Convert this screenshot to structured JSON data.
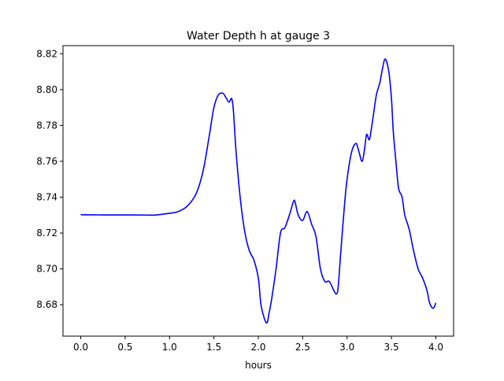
{
  "chart_data": {
    "type": "line",
    "title": "Water Depth h at gauge 3",
    "xlabel": "hours",
    "ylabel": "",
    "xlim": [
      -0.2,
      4.2
    ],
    "ylim": [
      8.6625,
      8.8245
    ],
    "xticks": [
      0.0,
      0.5,
      1.0,
      1.5,
      2.0,
      2.5,
      3.0,
      3.5,
      4.0
    ],
    "xtick_labels": [
      "0.0",
      "0.5",
      "1.0",
      "1.5",
      "2.0",
      "2.5",
      "3.0",
      "3.5",
      "4.0"
    ],
    "yticks": [
      8.68,
      8.7,
      8.72,
      8.74,
      8.76,
      8.78,
      8.8,
      8.82
    ],
    "ytick_labels": [
      "8.68",
      "8.70",
      "8.72",
      "8.74",
      "8.76",
      "8.78",
      "8.80",
      "8.82"
    ],
    "grid": false,
    "series": [
      {
        "color": "#0000ff",
        "x": [
          0.0,
          0.25,
          0.5,
          0.75,
          0.85,
          1.0,
          1.1,
          1.2,
          1.3,
          1.38,
          1.45,
          1.5,
          1.55,
          1.6,
          1.63,
          1.67,
          1.7,
          1.72,
          1.75,
          1.8,
          1.85,
          1.9,
          1.95,
          2.0,
          2.03,
          2.07,
          2.1,
          2.12,
          2.15,
          2.2,
          2.25,
          2.3,
          2.35,
          2.4,
          2.42,
          2.45,
          2.5,
          2.55,
          2.6,
          2.65,
          2.7,
          2.75,
          2.8,
          2.85,
          2.88,
          2.9,
          2.93,
          2.97,
          3.0,
          3.05,
          3.1,
          3.13,
          3.17,
          3.2,
          3.22,
          3.25,
          3.27,
          3.3,
          3.33,
          3.37,
          3.4,
          3.43,
          3.47,
          3.5,
          3.52,
          3.55,
          3.58,
          3.62,
          3.65,
          3.7,
          3.75,
          3.8,
          3.85,
          3.9,
          3.93,
          3.97,
          4.0
        ],
        "y": [
          8.7302,
          8.7301,
          8.7301,
          8.73,
          8.7301,
          8.731,
          8.732,
          8.735,
          8.742,
          8.755,
          8.775,
          8.79,
          8.797,
          8.798,
          8.796,
          8.793,
          8.795,
          8.788,
          8.765,
          8.738,
          8.72,
          8.71,
          8.705,
          8.695,
          8.68,
          8.672,
          8.67,
          8.675,
          8.683,
          8.7,
          8.72,
          8.723,
          8.73,
          8.738,
          8.736,
          8.73,
          8.727,
          8.732,
          8.725,
          8.718,
          8.7,
          8.693,
          8.693,
          8.688,
          8.686,
          8.69,
          8.71,
          8.735,
          8.75,
          8.765,
          8.77,
          8.766,
          8.76,
          8.768,
          8.775,
          8.772,
          8.777,
          8.787,
          8.797,
          8.804,
          8.812,
          8.817,
          8.81,
          8.795,
          8.777,
          8.76,
          8.745,
          8.74,
          8.73,
          8.722,
          8.71,
          8.7,
          8.695,
          8.688,
          8.681,
          8.678,
          8.681
        ]
      }
    ]
  }
}
